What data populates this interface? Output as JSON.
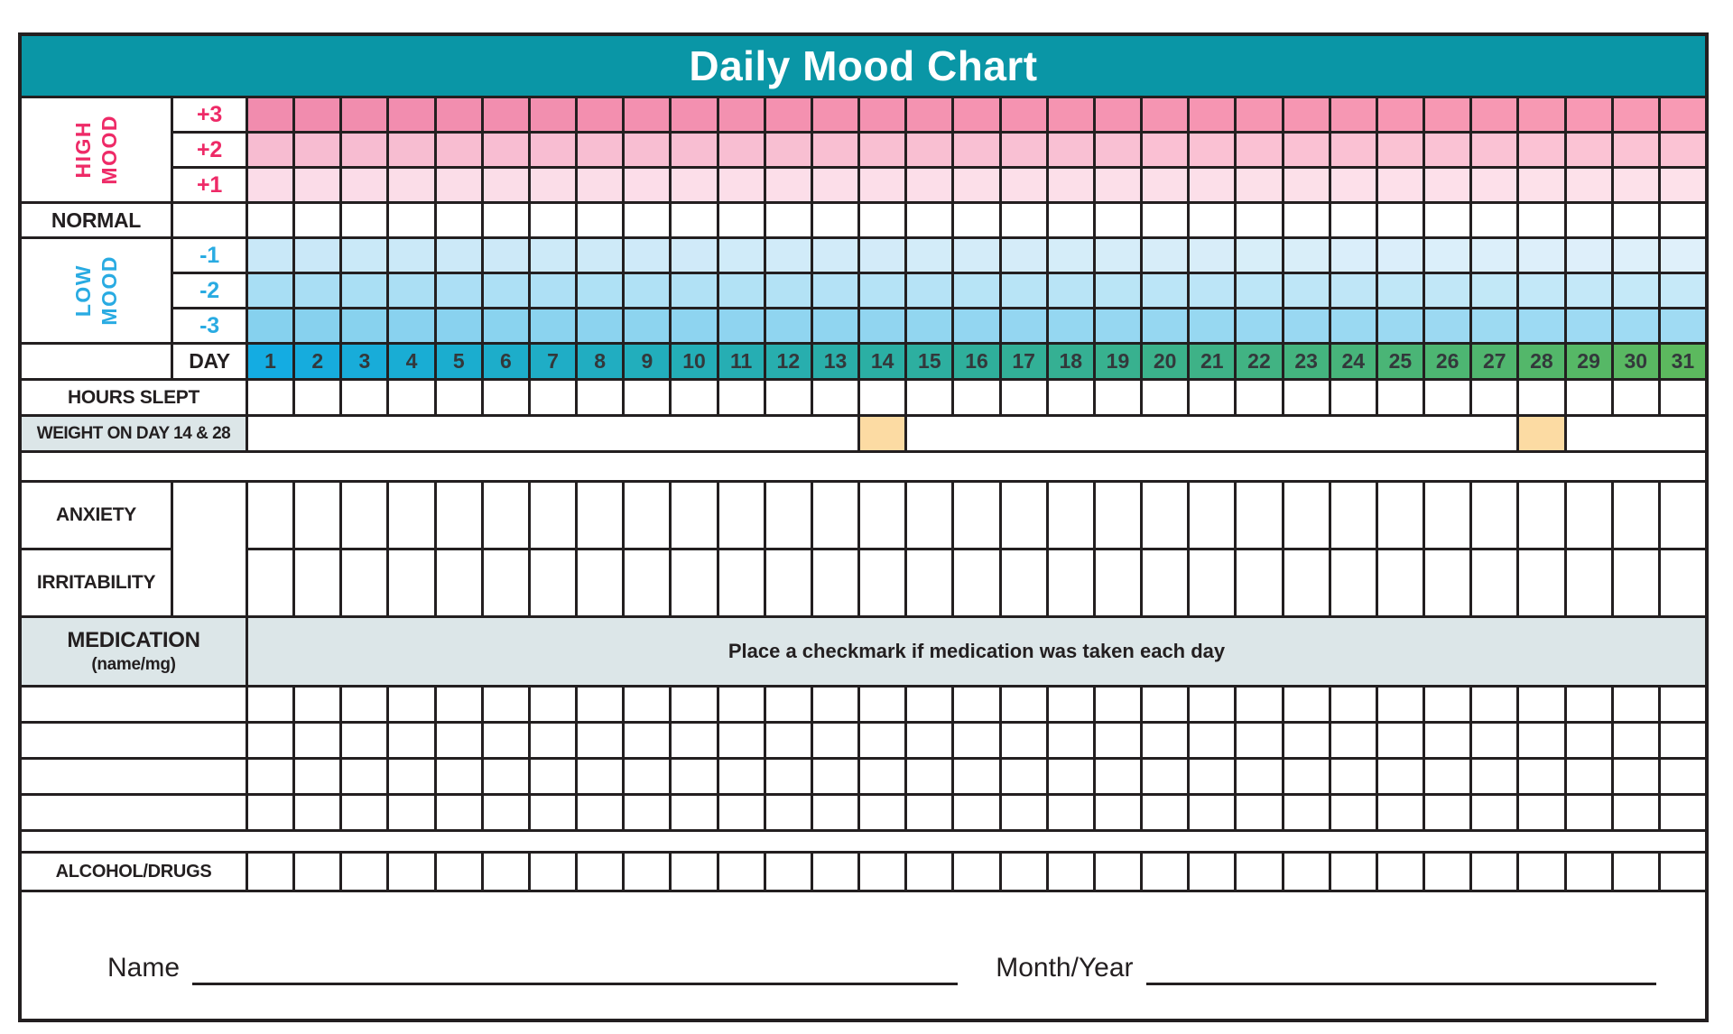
{
  "title": "Daily Mood Chart",
  "colors": {
    "ink": "#231F20",
    "teal_header": "#0A96A6",
    "pink_label": "#EE2A67",
    "blue_label": "#29ABE2",
    "panel_gray": "#DCE6E8",
    "highlight_orange": "#FCDBA3",
    "day_number_text": "#33383B"
  },
  "mood": {
    "high_word1": "HIGH",
    "high_word2": "MOOD",
    "plus3": {
      "label": "+3",
      "gradient": "#F18CAE|#F89AB4"
    },
    "plus2": {
      "label": "+2",
      "gradient": "#F7BCD1|#FBC3D4"
    },
    "plus1": {
      "label": "+1",
      "gradient": "#FBDCE8|#FDE1EA"
    },
    "normal_label": "NORMAL",
    "low_word1": "LOW",
    "low_word2": "MOOD",
    "minus1": {
      "label": "-1",
      "gradient": "#C9E8F8|#DFF0FA"
    },
    "minus2": {
      "label": "-2",
      "gradient": "#A8DEF4|#C6E9F8"
    },
    "minus3": {
      "label": "-3",
      "gradient": "#86D1EE|#A0DBF3"
    }
  },
  "day": {
    "label": "DAY",
    "numbers": [
      1,
      2,
      3,
      4,
      5,
      6,
      7,
      8,
      9,
      10,
      11,
      12,
      13,
      14,
      15,
      16,
      17,
      18,
      19,
      20,
      21,
      22,
      23,
      24,
      25,
      26,
      27,
      28,
      29,
      30,
      31
    ],
    "gradient": "#14ACE2|#2FAF9B|#5CB95E"
  },
  "tracking": {
    "hours_slept_label": "HOURS SLEPT",
    "weight_label": "WEIGHT ON DAY 14 & 28",
    "weight_highlight_days": [
      14,
      28
    ],
    "anxiety_label": "ANXIETY",
    "irritability_label": "IRRITABILITY",
    "alcohol_label": "ALCOHOL/DRUGS"
  },
  "medication": {
    "label": "MEDICATION",
    "sub_label": "(name/mg)",
    "instruction": "Place a checkmark if medication was taken each day"
  },
  "footer": {
    "name_label": "Name",
    "month_year_label": "Month/Year"
  }
}
